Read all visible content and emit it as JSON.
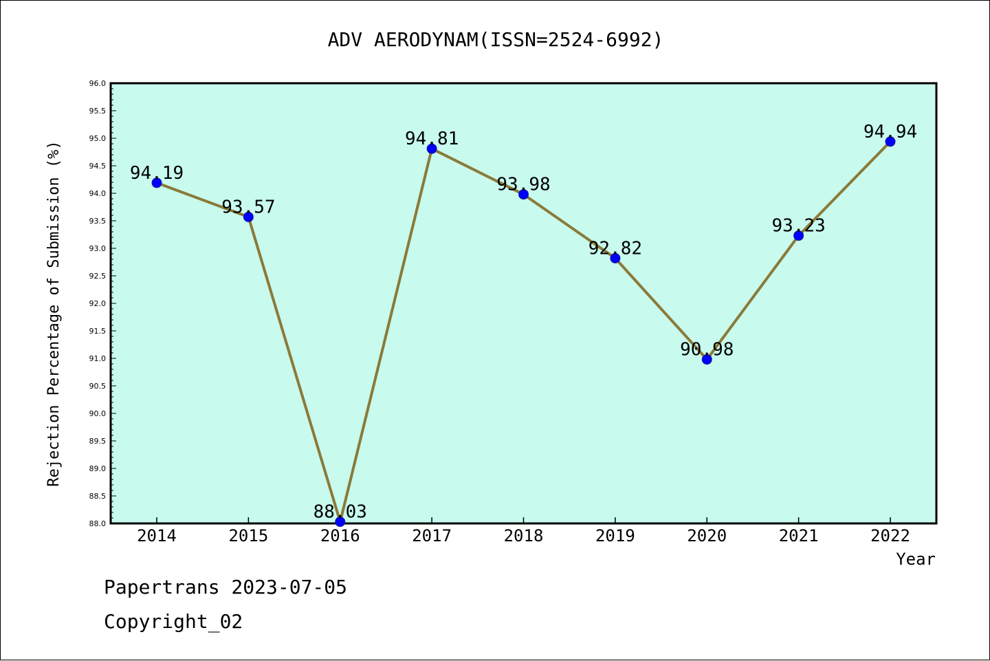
{
  "footer": {
    "line1": "Papertrans 2023-07-05",
    "line2": "Copyright_02"
  },
  "colors": {
    "plot_background": "#c8faee",
    "line": "#8b7a38",
    "marker": "#0000ff",
    "marker_edge": "#1a1a8a",
    "axis": "#000000"
  },
  "chart_data": {
    "type": "line",
    "title": "ADV AERODYNAM(ISSN=2524-6992)",
    "xlabel": "Year",
    "ylabel": "Rejection Percentage of Submission (%)",
    "categories": [
      "2014",
      "2015",
      "2016",
      "2017",
      "2018",
      "2019",
      "2020",
      "2021",
      "2022"
    ],
    "values": [
      94.19,
      93.57,
      88.03,
      94.81,
      93.98,
      92.82,
      90.98,
      93.23,
      94.94
    ],
    "data_labels": [
      "94.19",
      "93.57",
      "88.03",
      "94.81",
      "93.98",
      "92.82",
      "90.98",
      "93.23",
      "94.94"
    ],
    "ylim": [
      88.0,
      96.0
    ],
    "yticks": [
      "88.0",
      "88.5",
      "89.0",
      "89.5",
      "90.0",
      "90.5",
      "91.0",
      "91.5",
      "92.0",
      "92.5",
      "93.0",
      "93.5",
      "94.0",
      "94.5",
      "95.0",
      "95.5",
      "96.0"
    ],
    "grid": false,
    "legend": "none"
  }
}
